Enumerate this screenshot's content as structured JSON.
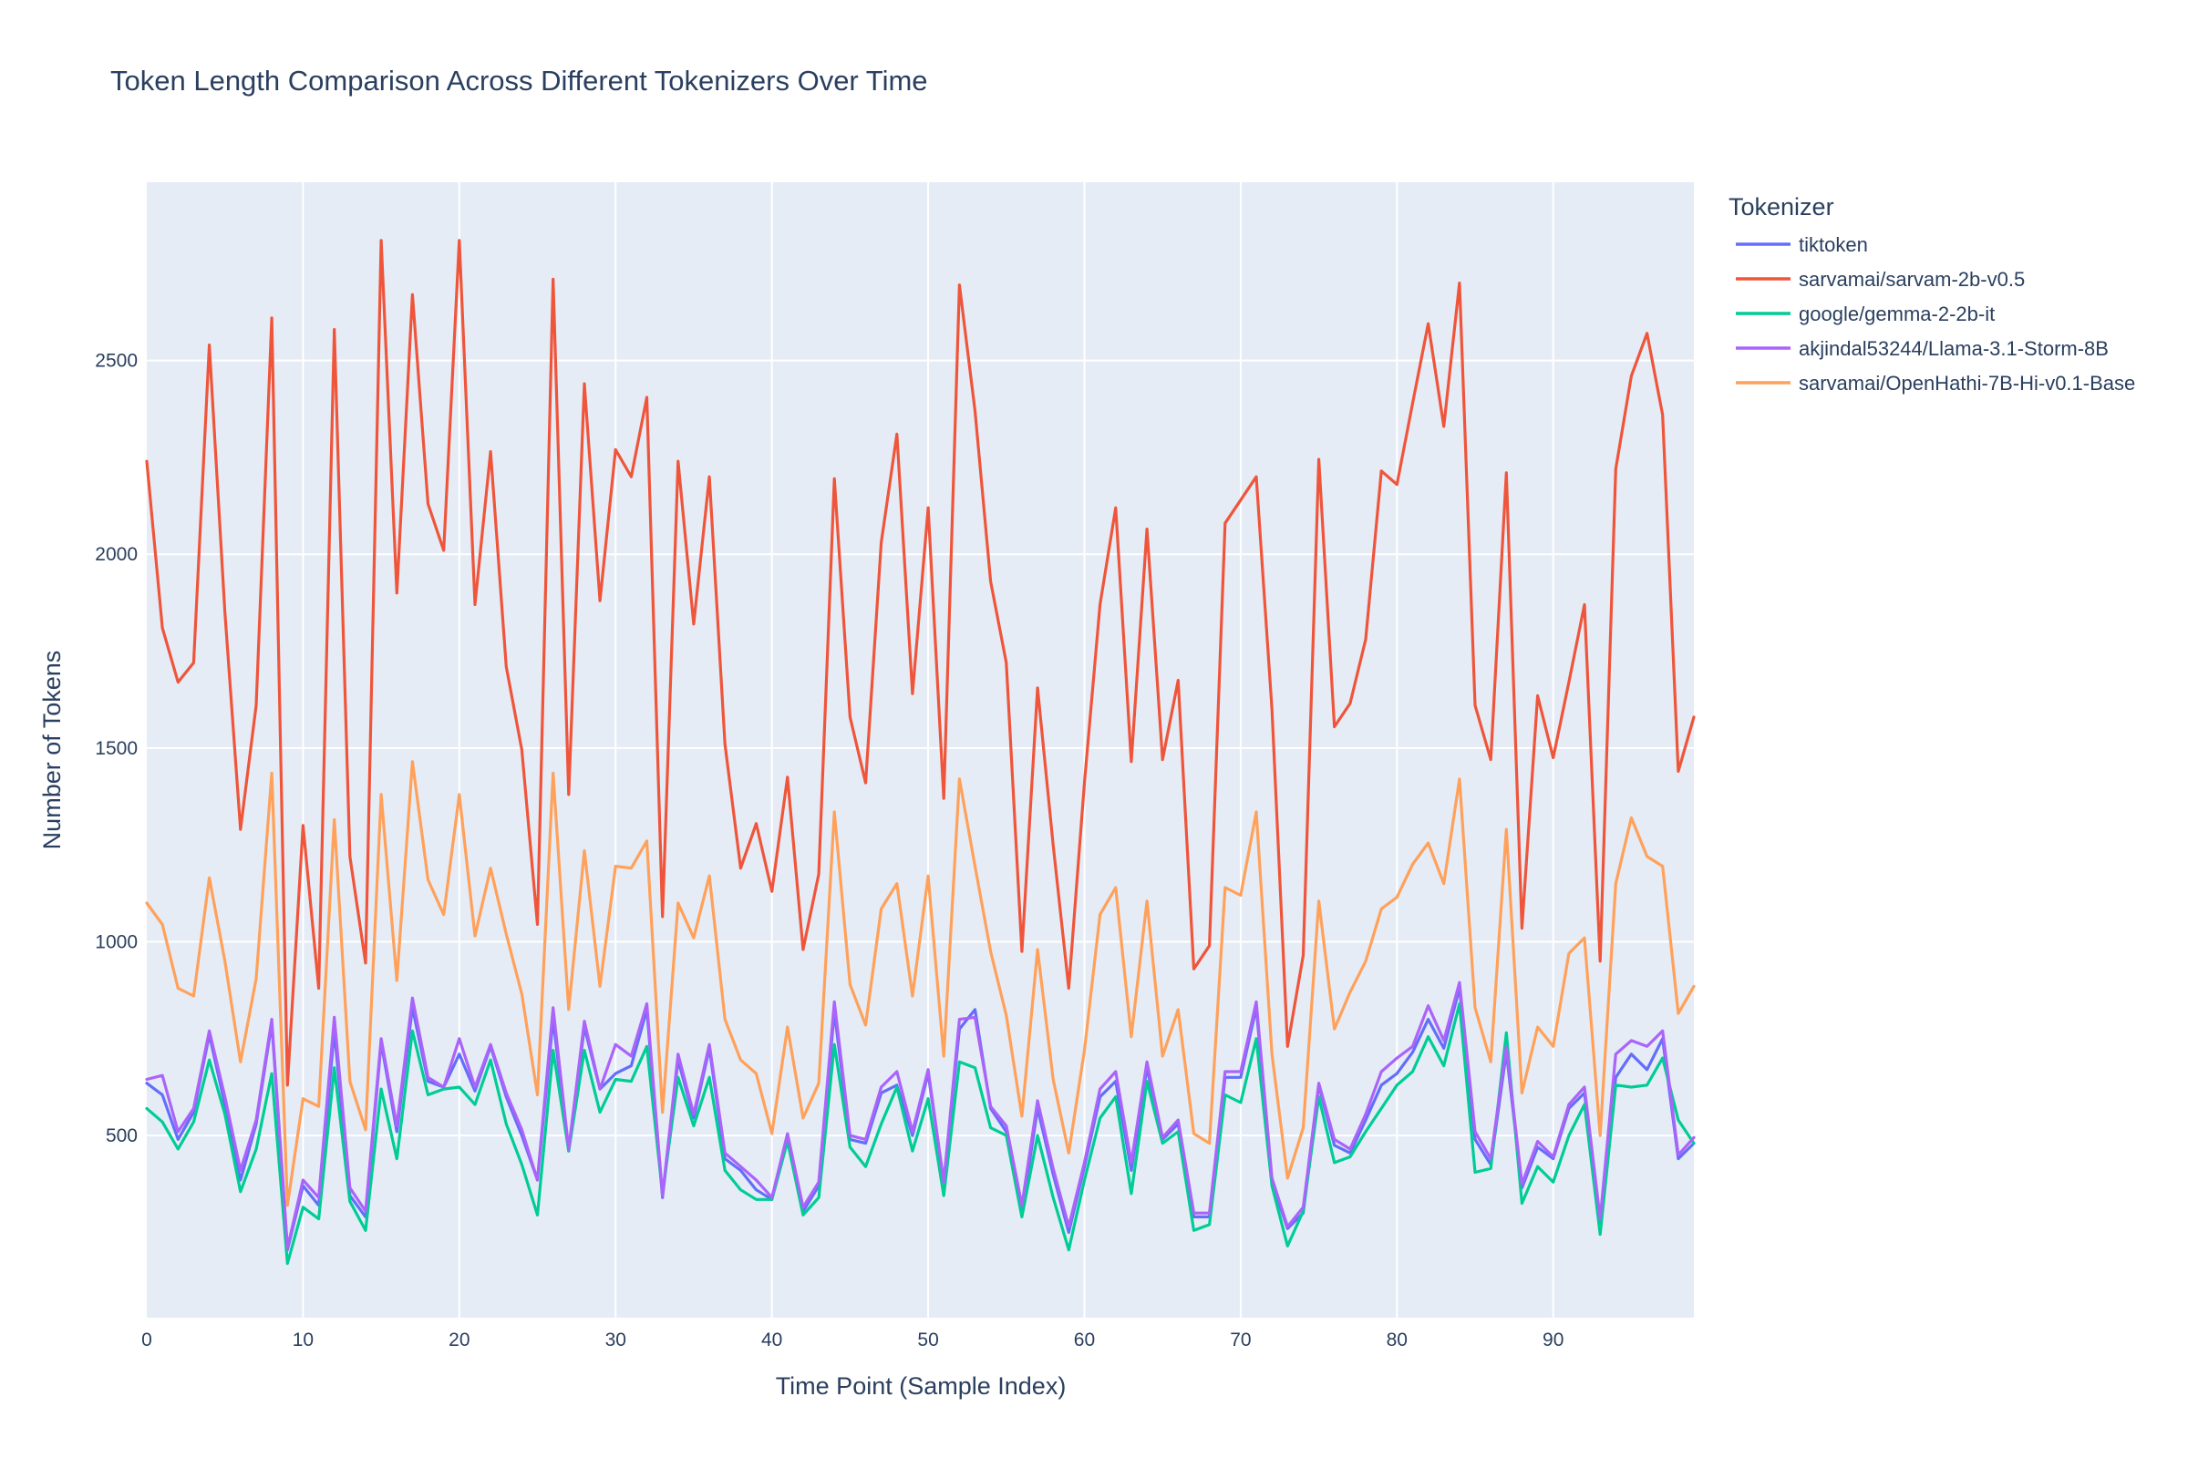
{
  "chart_data": {
    "type": "line",
    "title": "Token Length Comparison Across Different Tokenizers Over Time",
    "xlabel": "Time Point (Sample Index)",
    "ylabel": "Number of Tokens",
    "xlim": [
      0,
      99
    ],
    "ylim": [
      30,
      2960
    ],
    "xticks": [
      0,
      10,
      20,
      30,
      40,
      50,
      60,
      70,
      80,
      90
    ],
    "yticks": [
      500,
      1000,
      1500,
      2000,
      2500
    ],
    "grid": true,
    "legend_title": "Tokenizer",
    "legend_position": "right",
    "background_color": "#E5ECF6",
    "grid_color": "#ffffff",
    "series": [
      {
        "name": "tiktoken",
        "color": "#636EFA",
        "values": [
          635,
          605,
          490,
          560,
          760,
          580,
          385,
          530,
          790,
          205,
          370,
          320,
          770,
          345,
          290,
          740,
          510,
          830,
          640,
          625,
          710,
          615,
          730,
          600,
          500,
          385,
          800,
          460,
          780,
          620,
          660,
          680,
          825,
          340,
          695,
          545,
          725,
          440,
          410,
          360,
          335,
          500,
          305,
          370,
          820,
          490,
          480,
          610,
          630,
          500,
          660,
          380,
          775,
          825,
          570,
          510,
          300,
          570,
          400,
          250,
          420,
          600,
          640,
          410,
          675,
          490,
          530,
          290,
          290,
          650,
          650,
          830,
          380,
          260,
          300,
          630,
          475,
          455,
          540,
          630,
          660,
          715,
          800,
          725,
          880,
          490,
          425,
          715,
          365,
          470,
          440,
          570,
          610,
          275,
          650,
          710,
          670,
          750,
          440,
          480
        ]
      },
      {
        "name": "sarvamai/sarvam-2b-v0.5",
        "color": "#EF553B",
        "values": [
          2240,
          1810,
          1670,
          1720,
          2540,
          1850,
          1290,
          1610,
          2610,
          630,
          1300,
          880,
          2580,
          1220,
          945,
          2810,
          1900,
          2670,
          2130,
          2010,
          2810,
          1870,
          2265,
          1710,
          1495,
          1045,
          2710,
          1380,
          2440,
          1880,
          2270,
          2200,
          2405,
          1065,
          2240,
          1820,
          2200,
          1510,
          1190,
          1305,
          1130,
          1425,
          980,
          1175,
          2195,
          1580,
          1410,
          2030,
          2310,
          1640,
          2120,
          1370,
          2695,
          2370,
          1930,
          1720,
          975,
          1655,
          1250,
          880,
          1410,
          1870,
          2120,
          1465,
          2065,
          1470,
          1675,
          930,
          990,
          2080,
          2140,
          2200,
          1600,
          730,
          965,
          2245,
          1555,
          1615,
          1780,
          2215,
          2180,
          2390,
          2595,
          2330,
          2700,
          1610,
          1470,
          2210,
          1035,
          1635,
          1475,
          1670,
          1870,
          950,
          2220,
          2460,
          2570,
          2360,
          1440,
          1580
        ]
      },
      {
        "name": "google/gemma-2-2b-it",
        "color": "#00CC96",
        "values": [
          570,
          535,
          465,
          535,
          695,
          555,
          355,
          465,
          660,
          170,
          315,
          285,
          675,
          330,
          255,
          620,
          440,
          770,
          605,
          620,
          625,
          580,
          695,
          530,
          425,
          295,
          720,
          460,
          720,
          560,
          645,
          640,
          730,
          350,
          650,
          525,
          650,
          410,
          360,
          335,
          335,
          485,
          295,
          340,
          735,
          470,
          420,
          530,
          625,
          460,
          595,
          345,
          690,
          675,
          520,
          500,
          290,
          500,
          340,
          205,
          385,
          545,
          600,
          350,
          640,
          480,
          510,
          255,
          270,
          605,
          585,
          750,
          370,
          215,
          305,
          600,
          430,
          445,
          510,
          570,
          630,
          665,
          755,
          680,
          840,
          405,
          415,
          765,
          325,
          420,
          380,
          500,
          580,
          245,
          630,
          625,
          630,
          700,
          540,
          480
        ]
      },
      {
        "name": "akjindal53244/Llama-3.1-Storm-8B",
        "color": "#AB63FA",
        "values": [
          645,
          655,
          510,
          570,
          770,
          600,
          410,
          540,
          800,
          210,
          385,
          340,
          805,
          365,
          305,
          750,
          525,
          855,
          650,
          625,
          750,
          625,
          735,
          610,
          515,
          385,
          830,
          465,
          795,
          620,
          735,
          705,
          840,
          345,
          710,
          555,
          735,
          455,
          420,
          385,
          340,
          505,
          315,
          380,
          845,
          500,
          490,
          625,
          665,
          510,
          670,
          380,
          800,
          805,
          575,
          525,
          320,
          590,
          415,
          265,
          430,
          620,
          665,
          430,
          690,
          495,
          540,
          300,
          300,
          665,
          665,
          845,
          390,
          265,
          315,
          635,
          490,
          465,
          555,
          665,
          700,
          730,
          835,
          745,
          895,
          510,
          440,
          730,
          375,
          485,
          445,
          580,
          625,
          285,
          710,
          745,
          730,
          770,
          450,
          495
        ]
      },
      {
        "name": "sarvamai/OpenHathi-7B-Hi-v0.1-Base",
        "color": "#FFA15A",
        "values": [
          1100,
          1045,
          880,
          860,
          1165,
          950,
          690,
          905,
          1435,
          320,
          595,
          575,
          1315,
          640,
          515,
          1380,
          900,
          1465,
          1160,
          1070,
          1380,
          1015,
          1190,
          1020,
          865,
          605,
          1435,
          825,
          1235,
          885,
          1195,
          1190,
          1260,
          560,
          1100,
          1010,
          1170,
          800,
          695,
          660,
          505,
          780,
          545,
          635,
          1335,
          890,
          785,
          1085,
          1150,
          860,
          1170,
          705,
          1420,
          1195,
          975,
          810,
          550,
          980,
          645,
          455,
          720,
          1070,
          1140,
          755,
          1105,
          705,
          825,
          505,
          480,
          1140,
          1120,
          1335,
          710,
          390,
          520,
          1105,
          775,
          870,
          950,
          1085,
          1115,
          1200,
          1255,
          1150,
          1420,
          830,
          690,
          1290,
          610,
          780,
          730,
          970,
          1010,
          500,
          1150,
          1320,
          1220,
          1195,
          815,
          885
        ]
      }
    ]
  }
}
